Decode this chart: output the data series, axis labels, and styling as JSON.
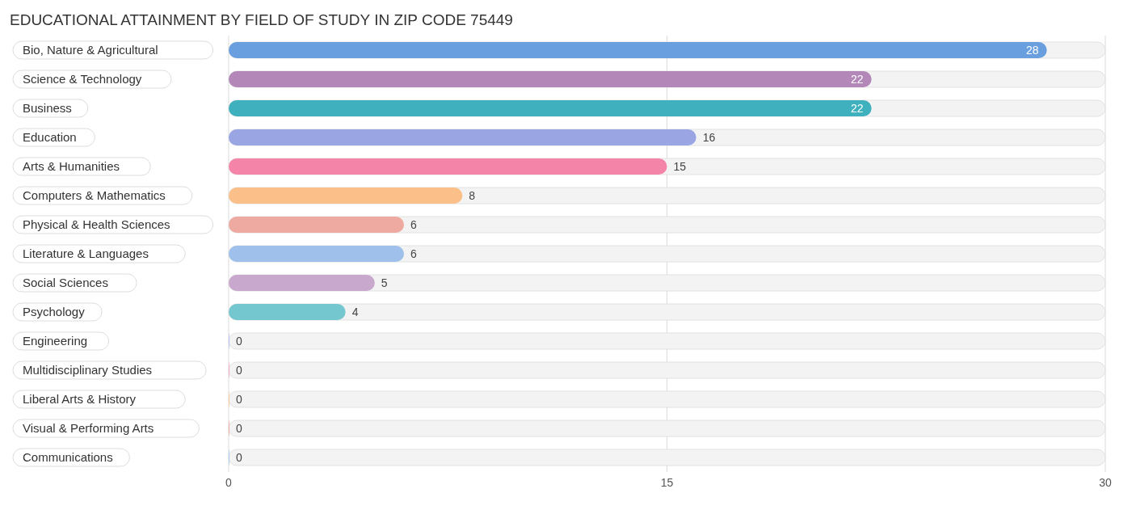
{
  "chart_data": {
    "type": "bar",
    "orientation": "horizontal",
    "title": "EDUCATIONAL ATTAINMENT BY FIELD OF STUDY IN ZIP CODE 75449",
    "categories": [
      "Bio, Nature & Agricultural",
      "Science & Technology",
      "Business",
      "Education",
      "Arts & Humanities",
      "Computers & Mathematics",
      "Physical & Health Sciences",
      "Literature & Languages",
      "Social Sciences",
      "Psychology",
      "Engineering",
      "Multidisciplinary Studies",
      "Liberal Arts & History",
      "Visual & Performing Arts",
      "Communications"
    ],
    "values": [
      28,
      22,
      22,
      16,
      15,
      8,
      6,
      6,
      5,
      4,
      0,
      0,
      0,
      0,
      0
    ],
    "colors": [
      "#6a9fdf",
      "#b388b9",
      "#3fb0be",
      "#9aa6e4",
      "#f585a8",
      "#fbc08a",
      "#eea9a0",
      "#9ec0ea",
      "#c8a8cc",
      "#74c6cf",
      "#b6bff0",
      "#f6a8c4",
      "#fbcb9c",
      "#f0aba3",
      "#a9c8ee"
    ],
    "xlim": [
      0,
      30
    ],
    "xticks": [
      0,
      15,
      30
    ],
    "grid": "x",
    "data_labels": true
  }
}
